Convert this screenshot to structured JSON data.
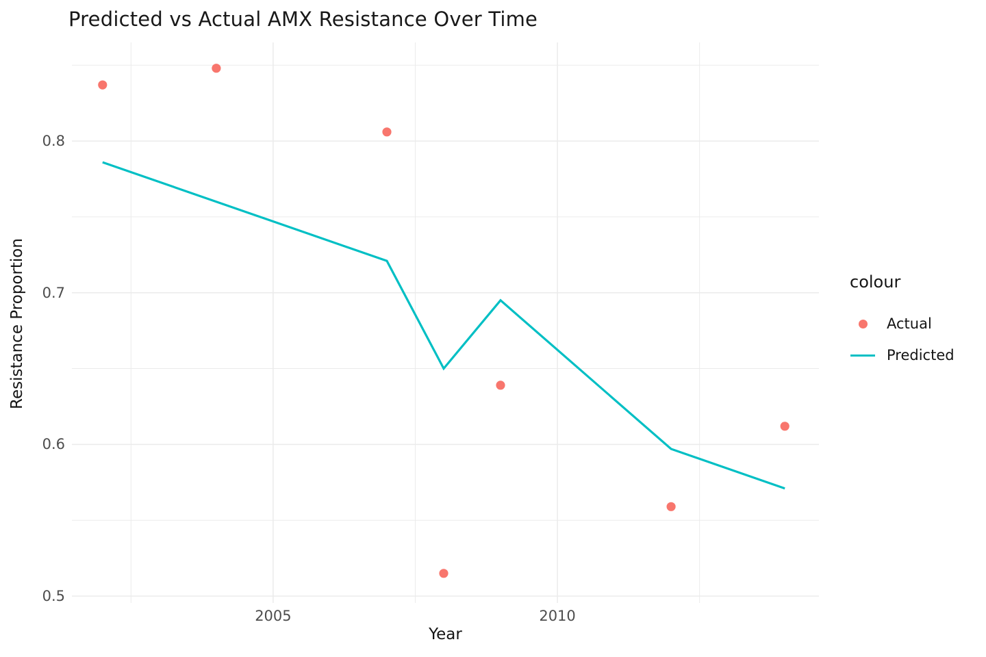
{
  "chart_data": {
    "type": "line",
    "title": "Predicted vs Actual AMX Resistance Over Time",
    "xlabel": "Year",
    "ylabel": "Resistance Proportion",
    "legend_title": "colour",
    "legend_position": "right",
    "grid": true,
    "xlim": [
      2001.46,
      2014.6
    ],
    "ylim": [
      0.4955,
      0.865
    ],
    "x_major_ticks": [
      2005,
      2010
    ],
    "x_tick_labels": [
      "2005",
      "2010"
    ],
    "x_minor_ticks": [
      2002.5,
      2007.5,
      2012.5
    ],
    "y_major_ticks": [
      0.5,
      0.6,
      0.7,
      0.8
    ],
    "y_tick_labels": [
      "0.5",
      "0.6",
      "0.7",
      "0.8"
    ],
    "y_minor_ticks": [
      0.55,
      0.65,
      0.75,
      0.85
    ],
    "series": [
      {
        "name": "Actual",
        "style": "points",
        "color": "#F8766D",
        "x": [
          2002,
          2004,
          2007,
          2008,
          2009,
          2012,
          2014
        ],
        "y": [
          0.837,
          0.848,
          0.806,
          0.515,
          0.639,
          0.559,
          0.612
        ]
      },
      {
        "name": "Predicted",
        "style": "line",
        "color": "#00BFC4",
        "x": [
          2002,
          2007,
          2008,
          2009,
          2012,
          2014
        ],
        "y": [
          0.786,
          0.721,
          0.65,
          0.695,
          0.597,
          0.571
        ]
      }
    ],
    "colors": {
      "grid": "#EBEBEB",
      "tick_text": "#4D4D4D",
      "title_text": "#181818"
    }
  }
}
